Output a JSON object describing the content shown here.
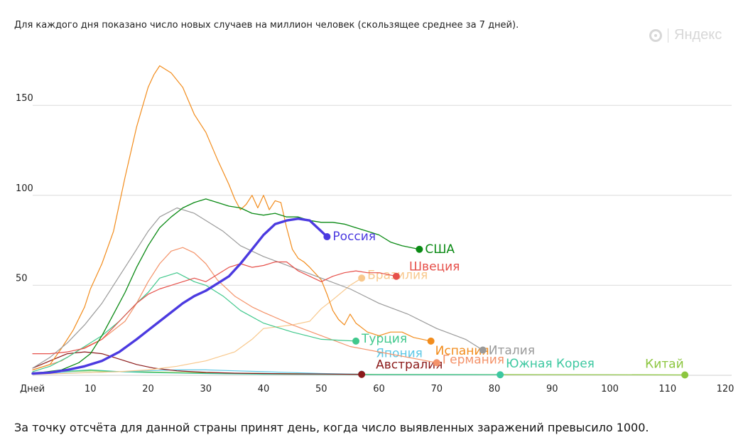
{
  "subtitle": "Для каждого дня показано число новых случаев на миллион человек (скользящее среднее за 7 дней).",
  "footnote": "За точку отсчёта для данной страны принят день, когда число выявленных заражений превысило 1000.",
  "logo_text": "Яндекс",
  "chart_data": {
    "type": "line",
    "xlim": [
      0,
      120
    ],
    "ylim": [
      0,
      175
    ],
    "x_ticks": [
      {
        "value": 0,
        "label": "Дней"
      },
      {
        "value": 10,
        "label": "10"
      },
      {
        "value": 20,
        "label": "20"
      },
      {
        "value": 30,
        "label": "30"
      },
      {
        "value": 40,
        "label": "40"
      },
      {
        "value": 50,
        "label": "50"
      },
      {
        "value": 60,
        "label": "60"
      },
      {
        "value": 70,
        "label": "70"
      },
      {
        "value": 80,
        "label": "80"
      },
      {
        "value": 90,
        "label": "90"
      },
      {
        "value": 100,
        "label": "100"
      },
      {
        "value": 110,
        "label": "110"
      },
      {
        "value": 120,
        "label": "120"
      }
    ],
    "y_ticks": [
      50,
      100,
      150
    ],
    "grid": true,
    "series": [
      {
        "name": "Китай",
        "color": "#8cc63f",
        "width": 1.2,
        "label_dx": -56,
        "label_dy": -16,
        "points": [
          [
            0,
            1.5
          ],
          [
            5,
            2
          ],
          [
            10,
            2.5
          ],
          [
            15,
            2
          ],
          [
            20,
            1.8
          ],
          [
            30,
            1.3
          ],
          [
            40,
            1
          ],
          [
            60,
            0.5
          ],
          [
            80,
            0.4
          ],
          [
            100,
            0.3
          ],
          [
            113,
            0.2
          ]
        ]
      },
      {
        "name": "Южная Корея",
        "color": "#3cc8a0",
        "width": 1.2,
        "label_dx": 8,
        "label_dy": -16,
        "points": [
          [
            0,
            1
          ],
          [
            5,
            2
          ],
          [
            10,
            3
          ],
          [
            15,
            2
          ],
          [
            20,
            1.5
          ],
          [
            30,
            1
          ],
          [
            40,
            0.6
          ],
          [
            60,
            0.4
          ],
          [
            81,
            0.3
          ]
        ]
      },
      {
        "name": "Япония",
        "color": "#5cc8e6",
        "width": 1.2,
        "label_dx": 20,
        "label_dy": -30,
        "points": [
          [
            0,
            1
          ],
          [
            10,
            1.5
          ],
          [
            20,
            2.5
          ],
          [
            25,
            3
          ],
          [
            30,
            3
          ],
          [
            35,
            2.5
          ],
          [
            40,
            2
          ],
          [
            45,
            1.5
          ],
          [
            50,
            1
          ],
          [
            57,
            0.6
          ]
        ]
      },
      {
        "name": "Австралия",
        "color": "#8b1a1a",
        "width": 1.2,
        "label_dx": 20,
        "label_dy": -14,
        "points": [
          [
            0,
            4
          ],
          [
            3,
            8
          ],
          [
            6,
            12
          ],
          [
            9,
            13
          ],
          [
            12,
            12
          ],
          [
            15,
            9
          ],
          [
            18,
            6
          ],
          [
            21,
            4
          ],
          [
            25,
            2.5
          ],
          [
            30,
            1.6
          ],
          [
            35,
            1.2
          ],
          [
            40,
            1
          ],
          [
            45,
            0.8
          ],
          [
            50,
            0.7
          ],
          [
            57,
            0.5
          ]
        ]
      },
      {
        "name": "Бразилия",
        "color": "#f8c88c",
        "width": 1.2,
        "label_dx": 8,
        "label_dy": -5,
        "points": [
          [
            0,
            0.5
          ],
          [
            5,
            1
          ],
          [
            10,
            1.5
          ],
          [
            15,
            2
          ],
          [
            20,
            3
          ],
          [
            25,
            5
          ],
          [
            30,
            8
          ],
          [
            35,
            13
          ],
          [
            38,
            20
          ],
          [
            40,
            26
          ],
          [
            45,
            28
          ],
          [
            48,
            30
          ],
          [
            50,
            37
          ],
          [
            52,
            42
          ],
          [
            55,
            50
          ],
          [
            57,
            54
          ]
        ]
      },
      {
        "name": "Германия",
        "color": "#f4936a",
        "width": 1.2,
        "label_dx": 8,
        "label_dy": -5,
        "points": [
          [
            0,
            3
          ],
          [
            5,
            8
          ],
          [
            8,
            14
          ],
          [
            12,
            20
          ],
          [
            16,
            30
          ],
          [
            18,
            40
          ],
          [
            20,
            52
          ],
          [
            22,
            62
          ],
          [
            24,
            69
          ],
          [
            26,
            71
          ],
          [
            28,
            68
          ],
          [
            30,
            62
          ],
          [
            32,
            53
          ],
          [
            35,
            44
          ],
          [
            38,
            38
          ],
          [
            40,
            35
          ],
          [
            45,
            28
          ],
          [
            50,
            22
          ],
          [
            55,
            16
          ],
          [
            60,
            13
          ],
          [
            65,
            10
          ],
          [
            70,
            7
          ]
        ]
      },
      {
        "name": "Турция",
        "color": "#40c88c",
        "width": 1.2,
        "label_dx": 8,
        "label_dy": -4,
        "points": [
          [
            0,
            2
          ],
          [
            3,
            5
          ],
          [
            6,
            10
          ],
          [
            9,
            16
          ],
          [
            12,
            22
          ],
          [
            15,
            30
          ],
          [
            18,
            40
          ],
          [
            20,
            46
          ],
          [
            22,
            54
          ],
          [
            25,
            57
          ],
          [
            28,
            52
          ],
          [
            30,
            50
          ],
          [
            33,
            44
          ],
          [
            36,
            36
          ],
          [
            40,
            29
          ],
          [
            45,
            24
          ],
          [
            50,
            20
          ],
          [
            56,
            19
          ]
        ]
      },
      {
        "name": "Испания",
        "color": "#f28c1c",
        "width": 1.2,
        "label_dx": 6,
        "label_dy": 13,
        "points": [
          [
            0,
            3
          ],
          [
            3,
            6
          ],
          [
            5,
            15
          ],
          [
            7,
            25
          ],
          [
            9,
            38
          ],
          [
            10,
            48
          ],
          [
            12,
            62
          ],
          [
            14,
            80
          ],
          [
            16,
            110
          ],
          [
            18,
            138
          ],
          [
            20,
            160
          ],
          [
            21,
            167
          ],
          [
            22,
            172
          ],
          [
            24,
            168
          ],
          [
            26,
            160
          ],
          [
            28,
            145
          ],
          [
            30,
            135
          ],
          [
            32,
            120
          ],
          [
            34,
            106
          ],
          [
            35,
            98
          ],
          [
            36,
            92
          ],
          [
            37,
            95
          ],
          [
            38,
            100
          ],
          [
            39,
            93
          ],
          [
            40,
            100
          ],
          [
            41,
            92
          ],
          [
            42,
            97
          ],
          [
            43,
            96
          ],
          [
            44,
            82
          ],
          [
            45,
            70
          ],
          [
            46,
            65
          ],
          [
            47,
            63
          ],
          [
            48,
            60
          ],
          [
            50,
            53
          ],
          [
            51,
            45
          ],
          [
            52,
            36
          ],
          [
            53,
            31
          ],
          [
            54,
            28
          ],
          [
            55,
            34
          ],
          [
            56,
            29
          ],
          [
            58,
            24
          ],
          [
            60,
            22
          ],
          [
            62,
            24
          ],
          [
            64,
            24
          ],
          [
            66,
            21
          ],
          [
            69,
            19
          ]
        ]
      },
      {
        "name": "Италия",
        "color": "#9a9a9a",
        "width": 1.2,
        "label_dx": 8,
        "label_dy": 0,
        "points": [
          [
            0,
            4
          ],
          [
            3,
            10
          ],
          [
            6,
            18
          ],
          [
            9,
            28
          ],
          [
            12,
            40
          ],
          [
            15,
            55
          ],
          [
            18,
            70
          ],
          [
            20,
            80
          ],
          [
            22,
            88
          ],
          [
            25,
            93
          ],
          [
            28,
            90
          ],
          [
            30,
            86
          ],
          [
            33,
            80
          ],
          [
            36,
            72
          ],
          [
            40,
            66
          ],
          [
            45,
            60
          ],
          [
            50,
            54
          ],
          [
            55,
            48
          ],
          [
            60,
            40
          ],
          [
            65,
            34
          ],
          [
            70,
            26
          ],
          [
            75,
            20
          ],
          [
            78,
            14
          ]
        ]
      },
      {
        "name": "Швеция",
        "color": "#e6504a",
        "width": 1.2,
        "label_dx": 18,
        "label_dy": -14,
        "points": [
          [
            0,
            12
          ],
          [
            3,
            12
          ],
          [
            6,
            13
          ],
          [
            9,
            15
          ],
          [
            12,
            20
          ],
          [
            15,
            30
          ],
          [
            18,
            40
          ],
          [
            20,
            45
          ],
          [
            22,
            48
          ],
          [
            24,
            50
          ],
          [
            26,
            52
          ],
          [
            28,
            54
          ],
          [
            30,
            52
          ],
          [
            32,
            56
          ],
          [
            34,
            60
          ],
          [
            36,
            62
          ],
          [
            38,
            60
          ],
          [
            40,
            61
          ],
          [
            42,
            63
          ],
          [
            44,
            63
          ],
          [
            46,
            58
          ],
          [
            48,
            55
          ],
          [
            50,
            52
          ],
          [
            52,
            55
          ],
          [
            54,
            57
          ],
          [
            56,
            58
          ],
          [
            58,
            57
          ],
          [
            60,
            57
          ],
          [
            63,
            55
          ]
        ]
      },
      {
        "name": "США",
        "color": "#0a8a14",
        "width": 1.3,
        "label_dx": 8,
        "label_dy": -1,
        "points": [
          [
            0,
            1
          ],
          [
            5,
            3
          ],
          [
            8,
            7
          ],
          [
            10,
            12
          ],
          [
            12,
            22
          ],
          [
            14,
            34
          ],
          [
            16,
            46
          ],
          [
            18,
            60
          ],
          [
            20,
            72
          ],
          [
            22,
            82
          ],
          [
            24,
            88
          ],
          [
            26,
            93
          ],
          [
            28,
            96
          ],
          [
            30,
            98
          ],
          [
            32,
            96
          ],
          [
            34,
            94
          ],
          [
            36,
            93
          ],
          [
            38,
            90
          ],
          [
            40,
            89
          ],
          [
            42,
            90
          ],
          [
            44,
            88
          ],
          [
            46,
            88
          ],
          [
            48,
            86
          ],
          [
            50,
            85
          ],
          [
            52,
            85
          ],
          [
            54,
            84
          ],
          [
            56,
            82
          ],
          [
            58,
            80
          ],
          [
            60,
            78
          ],
          [
            62,
            74
          ],
          [
            64,
            72
          ],
          [
            67,
            70
          ]
        ]
      },
      {
        "name": "Россия",
        "color": "#4b3ae0",
        "width": 3.4,
        "label_dx": 8,
        "label_dy": -1,
        "points": [
          [
            0,
            1
          ],
          [
            3,
            1.5
          ],
          [
            6,
            3
          ],
          [
            9,
            5
          ],
          [
            12,
            8
          ],
          [
            15,
            13
          ],
          [
            18,
            20
          ],
          [
            20,
            25
          ],
          [
            22,
            30
          ],
          [
            24,
            35
          ],
          [
            26,
            40
          ],
          [
            28,
            44
          ],
          [
            30,
            47
          ],
          [
            32,
            51
          ],
          [
            34,
            55
          ],
          [
            36,
            62
          ],
          [
            38,
            70
          ],
          [
            40,
            78
          ],
          [
            42,
            84
          ],
          [
            44,
            86
          ],
          [
            46,
            87
          ],
          [
            48,
            86
          ],
          [
            50,
            80
          ],
          [
            51,
            77
          ]
        ]
      }
    ]
  }
}
